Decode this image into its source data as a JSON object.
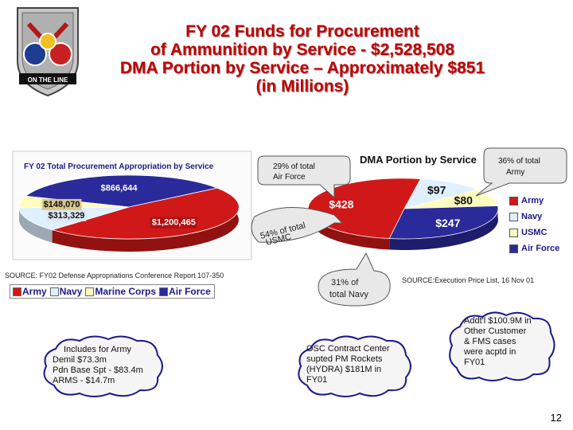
{
  "title": {
    "line1": "FY 02 Funds for Procurement",
    "line2": "of Ammunition by Service - $2,528,508",
    "line3": "DMA Portion by Service – Approximately $851",
    "line4": "(in Millions)"
  },
  "logo": {
    "motto": "ON THE LINE"
  },
  "colors": {
    "army": "#d01818",
    "navy": "#dff0ff",
    "usmc": "#fffcc0",
    "airforce": "#2a2a9a",
    "title": "#c00000"
  },
  "chart_data": [
    {
      "type": "pie",
      "title": "FY 02 Total Procurement Appropriation by Service",
      "labels": [
        "Army",
        "Navy",
        "Marine Corps",
        "Air Force"
      ],
      "values": [
        1200465,
        313329,
        148070,
        866644
      ],
      "value_labels": [
        "$1,200,465",
        "$313,329",
        "$148,070",
        "$866,644"
      ],
      "legend": [
        "Army",
        "Navy",
        "Marine Corps",
        "Air Force"
      ],
      "legend_placement": "bottom"
    },
    {
      "type": "pie",
      "title": "DMA Portion by Service",
      "labels": [
        "Army",
        "Navy",
        "USMC",
        "Air Force"
      ],
      "values": [
        428,
        97,
        80,
        247
      ],
      "value_labels": [
        "$428",
        "$97",
        "$80",
        "$247"
      ],
      "legend": [
        "Army",
        "Navy",
        "USMC",
        "Air Force"
      ],
      "legend_placement": "right"
    }
  ],
  "callouts": {
    "airforce_pct": "29% of total Air Force",
    "usmc_pct": "54% of total USMC",
    "army_pct": "36% of total Army",
    "navy_pct": "31% of total Navy"
  },
  "sources": {
    "left": "SOURCE: FY02 Defense Appropriations Conference Report 107-350",
    "right": "SOURCE:Execution Price List, 16 Nov 01"
  },
  "clouds": {
    "army_includes": [
      "Includes for Army",
      "Demil $73.3m",
      "Pdn Base Spt - $83.4m",
      "ARMS - $14.7m"
    ],
    "osc": [
      "OSC Contract Center",
      "supted PM Rockets",
      "(HYDRA)  $181M  in",
      "FY01"
    ],
    "addtl": [
      "Addt'l $100.9M in",
      "Other Customer",
      "& FMS cases",
      "were acptd in",
      "FY01"
    ]
  },
  "page_number": "12"
}
